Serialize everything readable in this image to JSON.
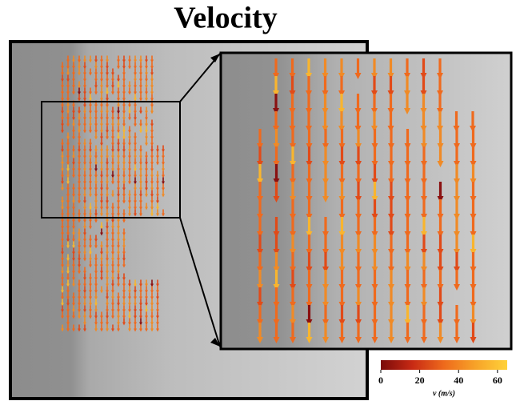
{
  "chart_data": {
    "type": "colorbar",
    "title": "Velocity",
    "colorbar": {
      "label": "v (m/s)",
      "lim": [
        0,
        65
      ],
      "ticks": [
        0,
        20,
        40,
        60
      ],
      "colors": [
        "#7a0a0a",
        "#c82a14",
        "#ee6a1c",
        "#f7a328",
        "#ffd23a"
      ]
    }
  }
}
